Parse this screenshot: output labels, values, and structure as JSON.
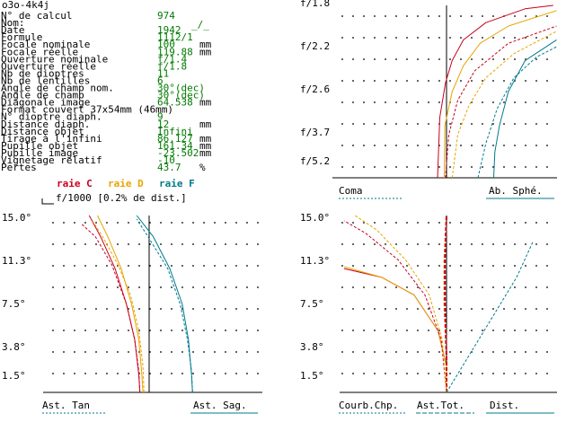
{
  "header": {
    "code": "o3o-4k4j",
    "glyph": "_/_"
  },
  "specs": [
    {
      "label": "N° de calcul",
      "value": "974",
      "unit": ""
    },
    {
      "label": "Nom:",
      "value": "",
      "unit": ""
    },
    {
      "label": "Date",
      "value": "1942",
      "unit": ""
    },
    {
      "label": "Formule",
      "value": "1112/1",
      "unit": ""
    },
    {
      "label": "Focale nominale",
      "value": "100",
      "unit": "mm"
    },
    {
      "label": "Focale réelle",
      "value": "119.88",
      "unit": "mm"
    },
    {
      "label": "Ouverture nominale",
      "value": "f/1.4",
      "unit": ""
    },
    {
      "label": "Ouverture réelle",
      "value": "f/1.8",
      "unit": ""
    },
    {
      "label": "Nb de dioptres",
      "value": "11",
      "unit": ""
    },
    {
      "label": "Nb de lentilles",
      "value": "6",
      "unit": ""
    },
    {
      "label": "Angle de champ nom.",
      "value": "30°(dec)",
      "unit": ""
    },
    {
      "label": "Angle de champ",
      "value": "30°(dec)",
      "unit": ""
    },
    {
      "label": "Diagonale image",
      "value": "64.538",
      "unit": "mm"
    },
    {
      "label": "Format couvert 37x54mm (46mm)",
      "value": "",
      "unit": ""
    },
    {
      "label": "N° dioptre diaph.",
      "value": "9",
      "unit": ""
    },
    {
      "label": "Distance diaph.",
      "value": "12",
      "unit": "mm"
    },
    {
      "label": "Distance objet",
      "value": "Infini",
      "unit": ""
    },
    {
      "label": "Tirage à l'infini",
      "value": "86.127",
      "unit": "mm"
    },
    {
      "label": "Pupille objet",
      "value": "161.34",
      "unit": "mm"
    },
    {
      "label": "Pupille image",
      "value": "-23.502",
      "unit": "mm"
    },
    {
      "label": "Vignetage relatif",
      "value": "-10",
      "unit": ""
    },
    {
      "label": "Pertes",
      "value": "43.7",
      "unit": "%"
    }
  ],
  "legend": {
    "raie_c": "raie C",
    "raie_d": "raie D",
    "raie_f": "raie F",
    "scale_note": "f/1000 [0.2% de dist.]"
  },
  "colors": {
    "raie_c": "#c8001e",
    "raie_d": "#e8a400",
    "raie_f": "#007a8c",
    "text_green": "#007a00",
    "grid": "#000000"
  },
  "chart_data": [
    {
      "id": "aberration",
      "type": "line",
      "y_tick_labels": [
        "f/1.8",
        "f/2.2",
        "f/2.6",
        "f/3.7",
        "f/5.2"
      ],
      "footer_left": "Coma",
      "footer_right": "Ab. Sphé.",
      "series": [
        {
          "line": "raie C",
          "style": "solid",
          "points": [
            [
              -0.08,
              0.0
            ],
            [
              -0.06,
              0.35
            ],
            [
              -0.01,
              0.55
            ],
            [
              0.05,
              0.68
            ],
            [
              0.15,
              0.8
            ],
            [
              0.35,
              0.9
            ],
            [
              0.7,
              0.98
            ],
            [
              0.95,
              1.0
            ]
          ]
        },
        {
          "line": "raie D",
          "style": "solid",
          "points": [
            [
              -0.02,
              0.0
            ],
            [
              -0.015,
              0.3
            ],
            [
              0.05,
              0.5
            ],
            [
              0.15,
              0.65
            ],
            [
              0.3,
              0.78
            ],
            [
              0.55,
              0.88
            ],
            [
              0.98,
              0.97
            ]
          ]
        },
        {
          "line": "raie F",
          "style": "solid",
          "points": [
            [
              0.42,
              0.0
            ],
            [
              0.43,
              0.15
            ],
            [
              0.47,
              0.3
            ],
            [
              0.55,
              0.5
            ],
            [
              0.7,
              0.68
            ],
            [
              0.98,
              0.8
            ]
          ]
        },
        {
          "line": "raie C",
          "style": "dashed",
          "points": [
            [
              -0.01,
              0.0
            ],
            [
              0.02,
              0.25
            ],
            [
              0.1,
              0.45
            ],
            [
              0.25,
              0.62
            ],
            [
              0.55,
              0.78
            ],
            [
              0.98,
              0.88
            ]
          ]
        },
        {
          "line": "raie D",
          "style": "dashed",
          "points": [
            [
              0.05,
              0.0
            ],
            [
              0.1,
              0.25
            ],
            [
              0.2,
              0.42
            ],
            [
              0.35,
              0.58
            ],
            [
              0.6,
              0.72
            ],
            [
              0.98,
              0.85
            ]
          ]
        },
        {
          "line": "raie F",
          "style": "dashed",
          "points": [
            [
              0.28,
              0.0
            ],
            [
              0.35,
              0.2
            ],
            [
              0.45,
              0.4
            ],
            [
              0.6,
              0.58
            ],
            [
              0.8,
              0.7
            ],
            [
              0.98,
              0.76
            ]
          ]
        }
      ]
    },
    {
      "id": "astigmatism",
      "type": "line",
      "y_tick_labels": [
        "15.0°",
        "11.3°",
        "7.5°",
        "3.8°",
        "1.5°"
      ],
      "footer_left": "Ast. Tan",
      "footer_right": "Ast. Sag.",
      "series": [
        {
          "line": "raie C",
          "style": "solid",
          "points": [
            [
              -0.09,
              0.0
            ],
            [
              -0.1,
              0.1
            ],
            [
              -0.14,
              0.3
            ],
            [
              -0.22,
              0.5
            ],
            [
              -0.33,
              0.7
            ],
            [
              -0.47,
              0.88
            ],
            [
              -0.58,
              1.0
            ]
          ]
        },
        {
          "line": "raie D",
          "style": "solid",
          "points": [
            [
              -0.06,
              0.0
            ],
            [
              -0.07,
              0.1
            ],
            [
              -0.1,
              0.3
            ],
            [
              -0.17,
              0.5
            ],
            [
              -0.27,
              0.7
            ],
            [
              -0.4,
              0.88
            ],
            [
              -0.5,
              1.0
            ]
          ]
        },
        {
          "line": "raie F",
          "style": "solid",
          "points": [
            [
              0.42,
              0.0
            ],
            [
              0.41,
              0.1
            ],
            [
              0.38,
              0.3
            ],
            [
              0.32,
              0.5
            ],
            [
              0.2,
              0.7
            ],
            [
              0.04,
              0.88
            ],
            [
              -0.12,
              1.0
            ]
          ]
        },
        {
          "line": "raie C",
          "style": "dashed",
          "points": [
            [
              -0.09,
              0.0
            ],
            [
              -0.1,
              0.12
            ],
            [
              -0.14,
              0.3
            ],
            [
              -0.22,
              0.5
            ],
            [
              -0.36,
              0.72
            ],
            [
              -0.52,
              0.88
            ],
            [
              -0.65,
              0.95
            ]
          ]
        },
        {
          "line": "raie D",
          "style": "dashed",
          "points": [
            [
              -0.05,
              0.0
            ],
            [
              -0.06,
              0.15
            ],
            [
              -0.1,
              0.35
            ],
            [
              -0.18,
              0.55
            ],
            [
              -0.3,
              0.72
            ],
            [
              -0.45,
              0.88
            ],
            [
              -0.56,
              0.98
            ]
          ]
        },
        {
          "line": "raie F",
          "style": "dashed",
          "points": [
            [
              0.42,
              0.0
            ],
            [
              0.41,
              0.12
            ],
            [
              0.37,
              0.3
            ],
            [
              0.3,
              0.5
            ],
            [
              0.18,
              0.7
            ],
            [
              0.0,
              0.87
            ],
            [
              -0.12,
              0.98
            ]
          ]
        }
      ]
    },
    {
      "id": "curvature",
      "type": "line",
      "y_tick_labels": [
        "15.0°",
        "11.3°",
        "7.5°",
        "3.8°",
        "1.5°"
      ],
      "footer_left": "Courb.Chp.",
      "footer_mid": "Ast.Tot.",
      "footer_right": "Dist.",
      "series": [
        {
          "line": "raie C",
          "style": "solid",
          "points": [
            [
              0.0,
              0.0
            ],
            [
              0.0,
              0.15
            ],
            [
              -0.08,
              0.35
            ],
            [
              -0.3,
              0.55
            ],
            [
              -0.6,
              0.65
            ],
            [
              -0.95,
              0.7
            ]
          ]
        },
        {
          "line": "raie D",
          "style": "solid",
          "points": [
            [
              0.0,
              0.0
            ],
            [
              0.0,
              0.15
            ],
            [
              -0.08,
              0.35
            ],
            [
              -0.3,
              0.55
            ],
            [
              -0.6,
              0.65
            ],
            [
              -0.95,
              0.71
            ]
          ]
        },
        {
          "line": "raie D",
          "style": "dashed-thick",
          "points": [
            [
              0.0,
              0.0
            ],
            [
              0.0,
              0.2
            ],
            [
              -0.02,
              0.5
            ],
            [
              -0.02,
              0.75
            ],
            [
              0.0,
              1.0
            ]
          ]
        },
        {
          "line": "raie C",
          "style": "dashed-thick",
          "points": [
            [
              0.0,
              0.0
            ],
            [
              0.0,
              0.2
            ],
            [
              -0.015,
              0.5
            ],
            [
              -0.015,
              0.75
            ],
            [
              0.0,
              1.0
            ]
          ]
        },
        {
          "line": "raie C",
          "style": "dashed",
          "points": [
            [
              0.0,
              0.0
            ],
            [
              -0.05,
              0.3
            ],
            [
              -0.2,
              0.55
            ],
            [
              -0.45,
              0.75
            ],
            [
              -0.75,
              0.9
            ],
            [
              -0.95,
              0.97
            ]
          ]
        },
        {
          "line": "raie D",
          "style": "dashed",
          "points": [
            [
              0.0,
              0.0
            ],
            [
              -0.04,
              0.3
            ],
            [
              -0.16,
              0.55
            ],
            [
              -0.38,
              0.75
            ],
            [
              -0.65,
              0.92
            ],
            [
              -0.85,
              1.0
            ]
          ]
        },
        {
          "line": "raie F",
          "style": "dashed",
          "points": [
            [
              0.0,
              0.0
            ],
            [
              0.2,
              0.2
            ],
            [
              0.45,
              0.45
            ],
            [
              0.65,
              0.65
            ],
            [
              0.8,
              0.85
            ]
          ]
        }
      ]
    }
  ]
}
